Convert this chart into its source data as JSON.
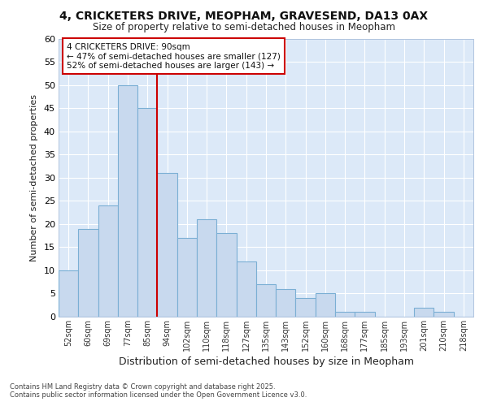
{
  "title1": "4, CRICKETERS DRIVE, MEOPHAM, GRAVESEND, DA13 0AX",
  "title2": "Size of property relative to semi-detached houses in Meopham",
  "xlabel": "Distribution of semi-detached houses by size in Meopham",
  "ylabel": "Number of semi-detached properties",
  "categories": [
    "52sqm",
    "60sqm",
    "69sqm",
    "77sqm",
    "85sqm",
    "94sqm",
    "102sqm",
    "110sqm",
    "118sqm",
    "127sqm",
    "135sqm",
    "143sqm",
    "152sqm",
    "160sqm",
    "168sqm",
    "177sqm",
    "185sqm",
    "193sqm",
    "201sqm",
    "210sqm",
    "218sqm"
  ],
  "values": [
    10,
    19,
    24,
    50,
    45,
    31,
    17,
    21,
    18,
    12,
    7,
    6,
    4,
    5,
    1,
    1,
    0,
    0,
    2,
    1,
    0
  ],
  "bar_color": "#c8d9ee",
  "bar_edge_color": "#7bafd4",
  "highlight_line_color": "#cc0000",
  "annotation_title": "4 CRICKETERS DRIVE: 90sqm",
  "annotation_line1": "← 47% of semi-detached houses are smaller (127)",
  "annotation_line2": "52% of semi-detached houses are larger (143) →",
  "annotation_box_facecolor": "#ffffff",
  "annotation_box_edgecolor": "#cc0000",
  "footer1": "Contains HM Land Registry data © Crown copyright and database right 2025.",
  "footer2": "Contains public sector information licensed under the Open Government Licence v3.0.",
  "ylim": [
    0,
    60
  ],
  "figure_facecolor": "#ffffff",
  "axes_facecolor": "#dce9f8",
  "grid_color": "#ffffff",
  "spine_color": "#b0c4de"
}
